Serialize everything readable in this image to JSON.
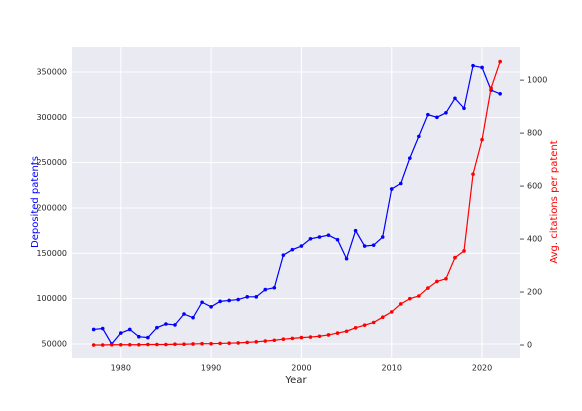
{
  "chart_data": {
    "type": "line",
    "xlabel": "Year",
    "ylabel": "Deposited patents",
    "y2label": "Avg. citations per patent",
    "x": [
      1977,
      1978,
      1979,
      1980,
      1981,
      1982,
      1983,
      1984,
      1985,
      1986,
      1987,
      1988,
      1989,
      1990,
      1991,
      1992,
      1993,
      1994,
      1995,
      1996,
      1997,
      1998,
      1999,
      2000,
      2001,
      2002,
      2003,
      2004,
      2005,
      2006,
      2007,
      2008,
      2009,
      2010,
      2011,
      2012,
      2013,
      2014,
      2015,
      2016,
      2017,
      2018,
      2019,
      2020,
      2021,
      2022
    ],
    "series": [
      {
        "color": "#0000ff",
        "axis": "y",
        "values": [
          66000,
          67000,
          50000,
          62000,
          66000,
          58000,
          57000,
          68000,
          72000,
          71000,
          83000,
          79000,
          96000,
          91000,
          97000,
          98000,
          99000,
          102000,
          102000,
          110000,
          112000,
          148000,
          154000,
          158000,
          166000,
          168000,
          170000,
          165000,
          144000,
          175000,
          158000,
          159000,
          168000,
          221000,
          227000,
          255000,
          279000,
          303000,
          300000,
          305000,
          321000,
          310000,
          357000,
          355000,
          330000,
          326000
        ]
      },
      {
        "color": "#ff0000",
        "axis": "y2",
        "values": [
          0,
          0,
          1,
          1,
          1,
          1,
          2,
          2,
          2,
          3,
          3,
          4,
          5,
          5,
          6,
          7,
          8,
          10,
          12,
          15,
          18,
          22,
          25,
          28,
          30,
          33,
          38,
          45,
          52,
          65,
          75,
          85,
          105,
          125,
          155,
          175,
          185,
          215,
          240,
          250,
          330,
          355,
          645,
          775,
          970,
          1070
        ]
      }
    ],
    "xlim": [
      1974.6,
      2024.2
    ],
    "xticks": [
      1980,
      1990,
      2000,
      2010,
      2020
    ],
    "ylim": [
      34500,
      377600
    ],
    "yticks": [
      50000,
      100000,
      150000,
      200000,
      250000,
      300000,
      350000
    ],
    "y2lim": [
      -49,
      1125
    ],
    "y2ticks": [
      0,
      200,
      400,
      600,
      800,
      1000
    ],
    "grid": true
  }
}
